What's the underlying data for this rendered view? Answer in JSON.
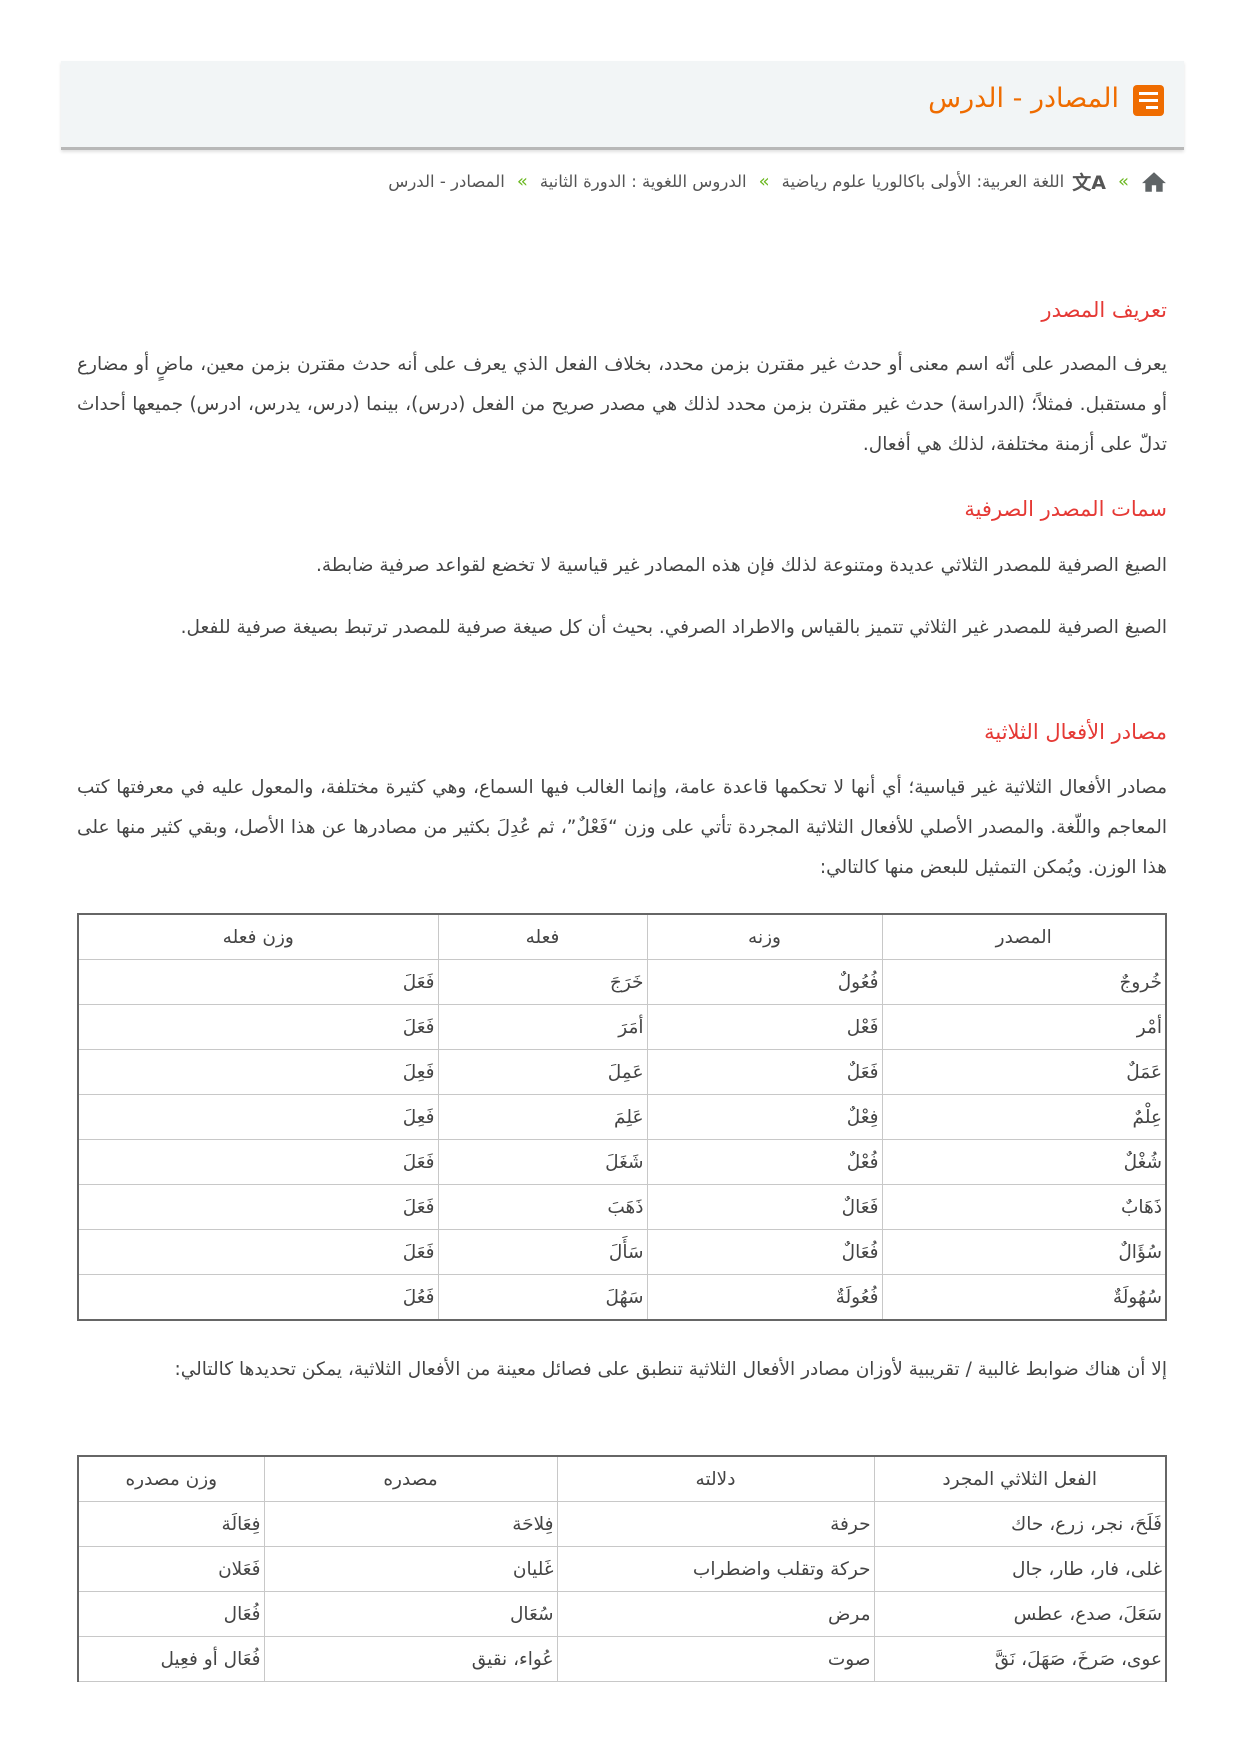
{
  "header": {
    "title": "المصادر - الدرس",
    "icon": "document-icon",
    "accent": "#ef6c00"
  },
  "breadcrumb": {
    "items": [
      "اللغة العربية: الأولى باكالوريا علوم رياضية",
      "الدروس اللغوية : الدورة الثانية",
      "المصادر - الدرس"
    ],
    "separator": "»"
  },
  "sections": [
    {
      "heading": "تعريف المصدر",
      "paragraphs": [
        "يعرف المصدر على أنّه اسم معنى أو حدث غير مقترن بزمن محدد، بخلاف الفعل الذي يعرف على أنه حدث مقترن بزمن معين، ماضٍ أو مضارع أو مستقبل. فمثلاً؛ (الدراسة) حدث غير مقترن بزمن محدد لذلك هي مصدر صريح من الفعل (درس)، بينما (درس، يدرس، ادرس) جميعها أحداث تدلّ على أزمنة مختلفة، لذلك هي أفعال."
      ]
    },
    {
      "heading": "سمات المصدر الصرفية",
      "paragraphs": [
        "الصيغ الصرفية للمصدر الثلاثي عديدة ومتنوعة لذلك فإن هذه المصادر غير قياسية لا تخضع لقواعد صرفية ضابطة.",
        "الصيغ الصرفية للمصدر غير الثلاثي تتميز بالقياس والاطراد الصرفي. بحيث أن كل صيغة صرفية للمصدر ترتبط بصيغة صرفية للفعل."
      ]
    },
    {
      "heading": "مصادر الأفعال الثلاثية",
      "paragraphs": [
        "مصادر الأفعال الثلاثية غير قياسية؛ أي أنها لا تحكمها قاعدة عامة، وإنما الغالب فيها السماع، وهي كثيرة مختلفة، والمعول عليه في معرفتها كتب المعاجم واللّغة. والمصدر الأصلي للأفعال الثلاثية المجردة تأتي على وزن “فَعْلٌ”، ثم عُدِلَ بكثير من مصادرها عن هذا الأصل، وبقي كثير منها على هذا الوزن. ويُمكن التمثيل للبعض منها كالتالي:"
      ]
    }
  ],
  "table1": {
    "headers": [
      "المصدر",
      "وزنه",
      "فعله",
      "وزن فعله"
    ],
    "rows": [
      [
        "خُروجٌ",
        "فُعُولٌ",
        "خَرَجَ",
        "فَعَلَ"
      ],
      [
        "أمْر",
        "فَعْل",
        "أمَرَ",
        "فَعَلَ"
      ],
      [
        "عَمَلٌ",
        "فَعَلٌ",
        "عَمِلَ",
        "فَعِلَ"
      ],
      [
        "عِلْمٌ",
        "فِعْلٌ",
        "عَلِمَ",
        "فَعِلَ"
      ],
      [
        "شُغْلٌ",
        "فُعْلٌ",
        "شَغَلَ",
        "فَعَلَ"
      ],
      [
        "ذَهَابٌ",
        "فَعَالٌ",
        "ذَهَبَ",
        "فَعَلَ"
      ],
      [
        "سُؤَالٌ",
        "فُعَالٌ",
        "سَأَلَ",
        "فَعَلَ"
      ],
      [
        "سُهُولَةٌ",
        "فُعُولَةٌ",
        "سَهُلَ",
        "فَعُلَ"
      ]
    ]
  },
  "after_table_paragraph": "إلا أن هناك ضوابط غالبية / تقريبية لأوزان مصادر الأفعال الثلاثية تنطبق على فصائل معينة من الأفعال الثلاثية، يمكن تحديدها كالتالي:",
  "table2": {
    "headers": [
      "الفعل الثلاثي المجرد",
      "دلالته",
      "مصدره",
      "وزن مصدره"
    ],
    "rows": [
      [
        "فَلَحَ، نجر، زرع، حاك",
        "حرفة",
        "فِلاحَة",
        "فِعَالَة"
      ],
      [
        "غلى، فار، طار، جال",
        "حركة وتقلب واضطراب",
        "غَليان",
        "فَعَلان"
      ],
      [
        "سَعَلَ، صدع، عطس",
        "مرض",
        "سُعَال",
        "فُعَال"
      ],
      [
        "عوى، صَرخَ، صَهَلَ، نَقَّ",
        "صوت",
        "عُواء، نقيق",
        "فُعَال أو فعِيل"
      ]
    ]
  },
  "colors": {
    "heading": "#e53935",
    "separator": "#6bb820",
    "text": "#444444"
  }
}
